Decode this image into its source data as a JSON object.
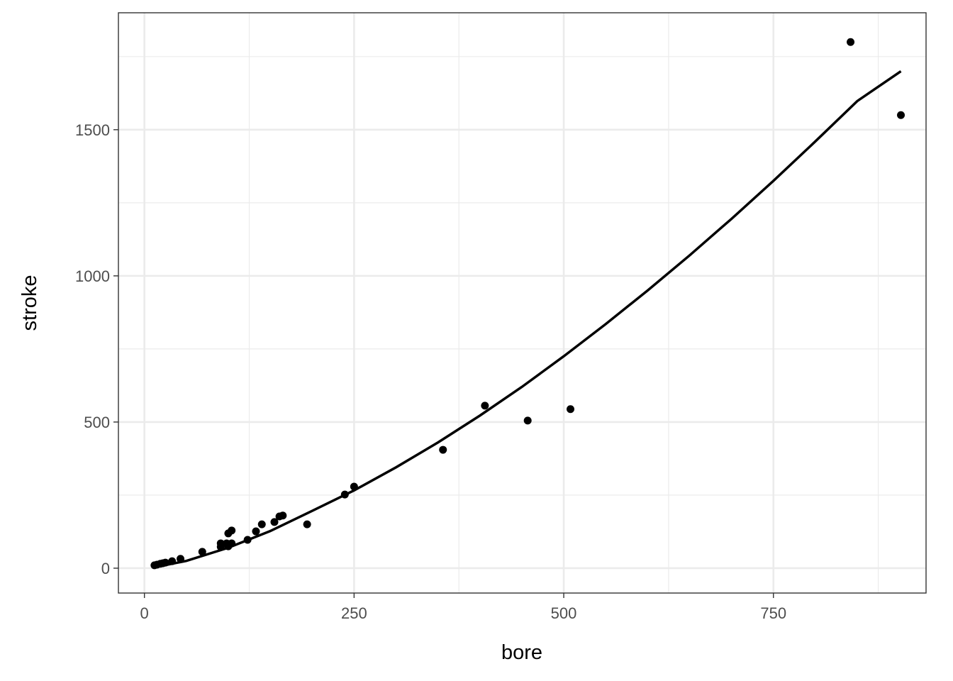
{
  "chart_data": {
    "type": "scatter",
    "xlabel": "bore",
    "ylabel": "stroke",
    "xlim": [
      -31,
      932
    ],
    "ylim": [
      -85,
      1900
    ],
    "x_ticks": [
      0,
      250,
      500,
      750
    ],
    "y_ticks": [
      0,
      500,
      1000,
      1500
    ],
    "x_tick_labels": [
      "0",
      "250",
      "500",
      "750"
    ],
    "y_tick_labels": [
      "0",
      "500",
      "1000",
      "1500"
    ],
    "x_minor": [
      125,
      375,
      625,
      875
    ],
    "y_minor": [
      250,
      750,
      1250,
      1750
    ],
    "grid": true,
    "legend": "none",
    "colors": {
      "points": "#000000",
      "line": "#000000",
      "grid": "#ebebeb",
      "panel_border": "#333333"
    },
    "points": [
      [
        12,
        10
      ],
      [
        15,
        12
      ],
      [
        19,
        15
      ],
      [
        22,
        17
      ],
      [
        25,
        19
      ],
      [
        33,
        24
      ],
      [
        43,
        32
      ],
      [
        69,
        56
      ],
      [
        91,
        73
      ],
      [
        91,
        85
      ],
      [
        98,
        85
      ],
      [
        100,
        119
      ],
      [
        104,
        129
      ],
      [
        100,
        75
      ],
      [
        104,
        85
      ],
      [
        123,
        97
      ],
      [
        133,
        126
      ],
      [
        140,
        150
      ],
      [
        155,
        158
      ],
      [
        161,
        177
      ],
      [
        165,
        180
      ],
      [
        194,
        150
      ],
      [
        239,
        252
      ],
      [
        250,
        279
      ],
      [
        356,
        405
      ],
      [
        406,
        556
      ],
      [
        457,
        505
      ],
      [
        508,
        544
      ],
      [
        842,
        1800
      ],
      [
        902,
        1550
      ]
    ],
    "fit_line": [
      [
        12,
        3.3
      ],
      [
        50,
        25
      ],
      [
        100,
        70
      ],
      [
        150,
        127
      ],
      [
        200,
        196
      ],
      [
        250,
        266
      ],
      [
        300,
        345
      ],
      [
        350,
        430
      ],
      [
        400,
        522
      ],
      [
        450,
        620
      ],
      [
        500,
        725
      ],
      [
        550,
        835
      ],
      [
        600,
        950
      ],
      [
        650,
        1070
      ],
      [
        700,
        1195
      ],
      [
        750,
        1325
      ],
      [
        800,
        1460
      ],
      [
        850,
        1598
      ],
      [
        902,
        1700
      ]
    ]
  }
}
